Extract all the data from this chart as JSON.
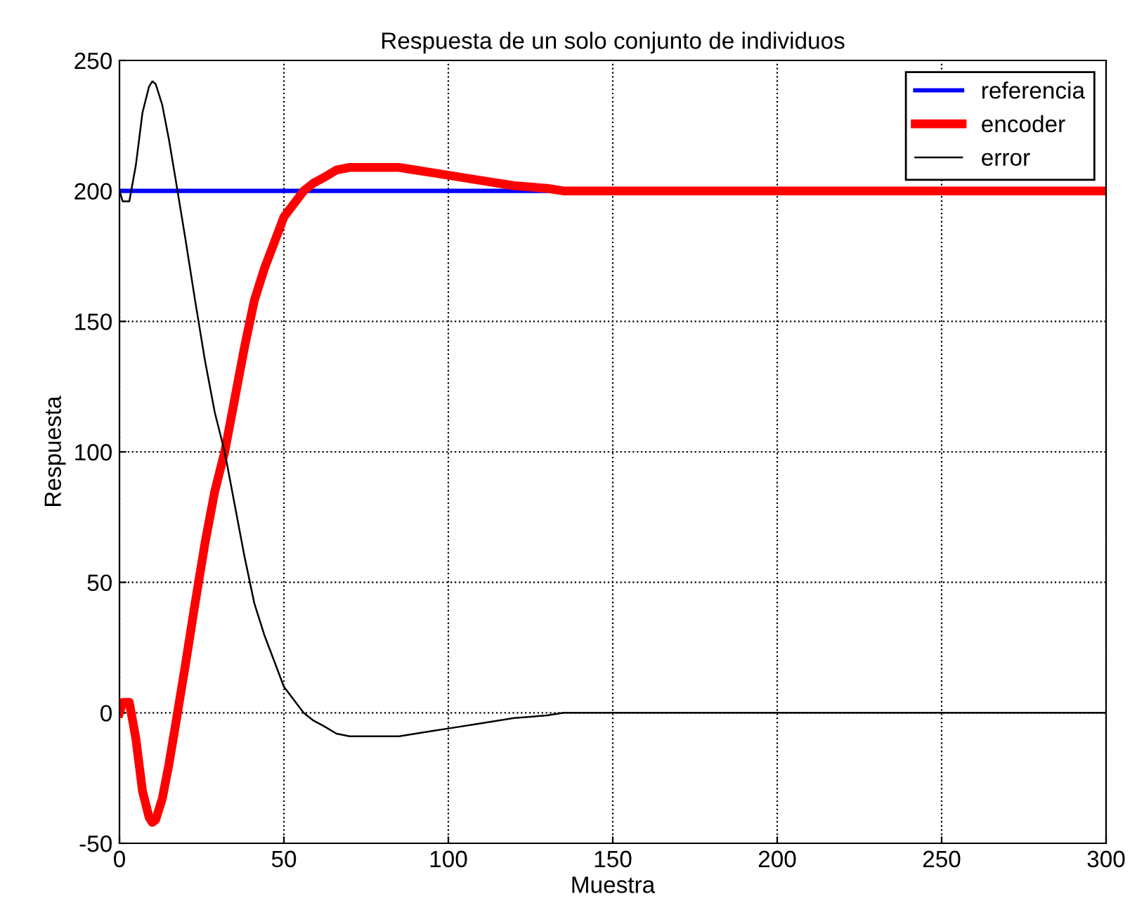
{
  "chart_data": {
    "type": "line",
    "title": "Respuesta de un solo conjunto de individuos",
    "xlabel": "Muestra",
    "ylabel": "Respuesta",
    "x": [
      0,
      1,
      3,
      5,
      7,
      9,
      10,
      11,
      13,
      15,
      17,
      20,
      23,
      26,
      29,
      32,
      35,
      38,
      41,
      44,
      47,
      50,
      53,
      56,
      59,
      62,
      66,
      70,
      75,
      80,
      85,
      90,
      95,
      100,
      110,
      120,
      130,
      135,
      150,
      200,
      250,
      300
    ],
    "series": [
      {
        "name": "referencia",
        "color": "#0000ff",
        "values": [
          200,
          200,
          200,
          200,
          200,
          200,
          200,
          200,
          200,
          200,
          200,
          200,
          200,
          200,
          200,
          200,
          200,
          200,
          200,
          200,
          200,
          200,
          200,
          200,
          200,
          200,
          200,
          200,
          200,
          200,
          200,
          200,
          200,
          200,
          200,
          200,
          200,
          null,
          null,
          null,
          null,
          null
        ]
      },
      {
        "name": "encoder",
        "color": "#ff0000",
        "values": [
          0,
          4,
          4,
          -10,
          -30,
          -40,
          -42,
          -41,
          -33,
          -20,
          -5,
          18,
          42,
          65,
          85,
          100,
          120,
          140,
          158,
          170,
          180,
          190,
          195,
          200,
          203,
          205,
          208,
          209,
          209,
          209,
          209,
          208,
          207,
          206,
          204,
          202,
          201,
          200,
          200,
          200,
          200,
          200
        ]
      },
      {
        "name": "error",
        "color": "#000000",
        "values": [
          200,
          196,
          196,
          210,
          230,
          240,
          242,
          241,
          233,
          220,
          205,
          182,
          158,
          135,
          115,
          100,
          80,
          60,
          42,
          30,
          20,
          10,
          5,
          0,
          -3,
          -5,
          -8,
          -9,
          -9,
          -9,
          -9,
          -8,
          -7,
          -6,
          -4,
          -2,
          -1,
          0,
          0,
          0,
          0,
          0
        ]
      }
    ],
    "xlim": [
      0,
      300
    ],
    "ylim": [
      -50,
      250
    ],
    "xticks": [
      0,
      50,
      100,
      150,
      200,
      250,
      300
    ],
    "yticks": [
      -50,
      0,
      50,
      100,
      150,
      200,
      250
    ],
    "grid": true,
    "legend": "top right",
    "line_style": "solid",
    "marker": "none"
  }
}
